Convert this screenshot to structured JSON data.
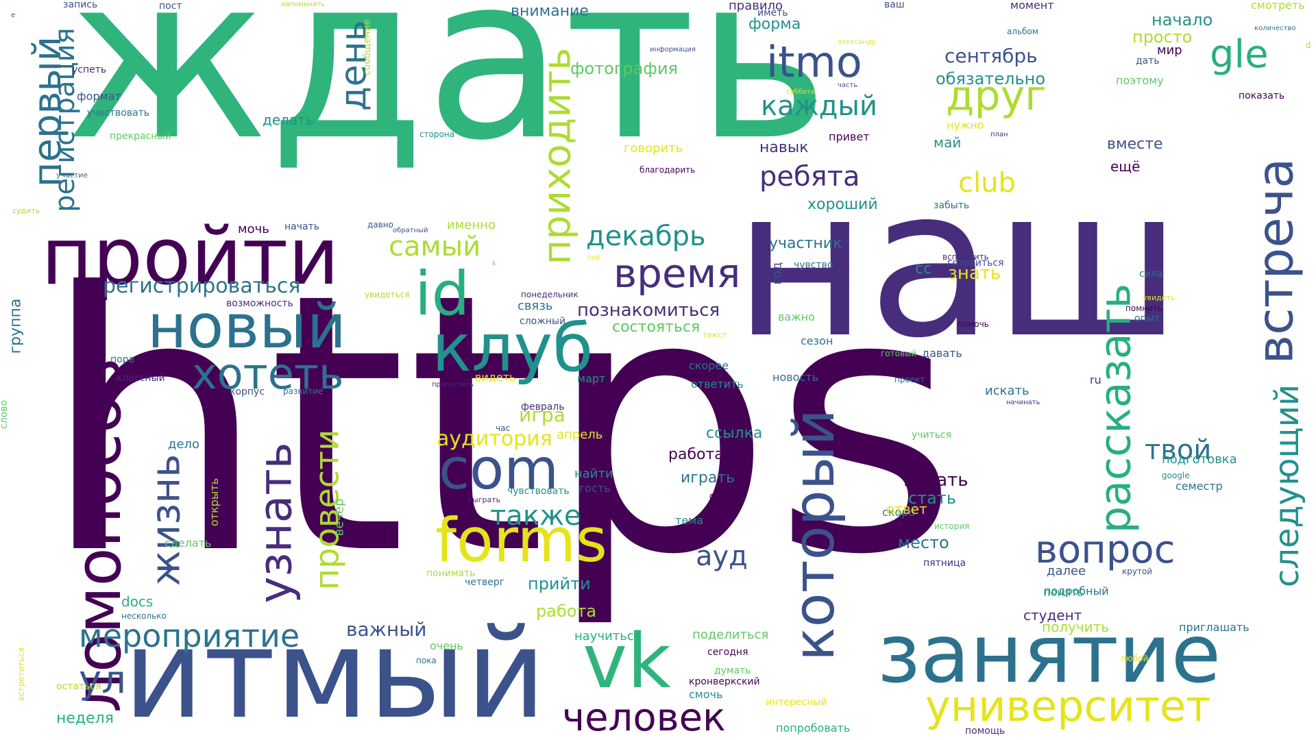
{
  "palette": {
    "green": "#2fb47c",
    "dark_purple": "#440154",
    "indigo": "#472d7b",
    "slate": "#3b528b",
    "teal_blue": "#2c728e",
    "teal": "#21918c",
    "sea_green": "#28ae80",
    "leaf_green": "#5ec962",
    "lime": "#addc30",
    "yellow": "#e5e419"
  },
  "words": [
    "ждать",
    "https",
    "наш",
    "итмый",
    "пройти",
    "новый",
    "занятие",
    "ломоносов",
    "клуб",
    "id",
    "com",
    "forms",
    "vk",
    "который",
    "встреча",
    "рассказать",
    "первый",
    "регистрация",
    "день",
    "приходить",
    "itmo",
    "gle",
    "друг",
    "время",
    "хотеть",
    "узнать",
    "провести",
    "жизнь",
    "мероприятие",
    "ул",
    "человек",
    "университет",
    "вопрос",
    "следующий",
    "твой",
    "ауд",
    "также",
    "декабрь",
    "самый",
    "каждый",
    "ребята",
    "club",
    "сентябрь",
    "обязательно",
    "начало",
    "просто",
    "фотография",
    "внимание",
    "форма",
    "правило",
    "иметь",
    "пост",
    "запись",
    "успеть",
    "формат",
    "участвовать",
    "прекрасный",
    "делать",
    "сторона",
    "участие",
    "судить",
    "сообщение",
    "напоминать",
    "информация",
    "александр",
    "суббота",
    "часть",
    "ваш",
    "альбом",
    "момент",
    "смотреть",
    "количество",
    "мир",
    "дать",
    "поэтому",
    "показать",
    "план",
    "привет",
    "нужно",
    "говорить",
    "благодарить",
    "навык",
    "хороший",
    "вместе",
    "ещё",
    "май",
    "забыть",
    "мочь",
    "начать",
    "давно",
    "обратный",
    "именно",
    "регистрироваться",
    "возможность",
    "увидеться",
    "понедельник",
    "связь",
    "сложный",
    "познакомиться",
    "состояться",
    "участник",
    "год",
    "выезд",
    "чувство",
    "сс",
    "знать",
    "готовиться",
    "вспомнить",
    "помочь",
    "сила",
    "увидеть",
    "помнить",
    "опыт",
    "важно",
    "сезон",
    "текст",
    "скорее",
    "ответить",
    "новость",
    "готовый",
    "давать",
    "проект",
    "искать",
    "начинать",
    "ru",
    "группа",
    "пора",
    "классный",
    "корпус",
    "развитие",
    "пропустить",
    "видеть",
    "март",
    "февраль",
    "игра",
    "аудитория",
    "апрель",
    "час",
    "ссылка",
    "работать",
    "играть",
    "подготовка",
    "google",
    "семестр",
    "писать",
    "стать",
    "учиться",
    "слово",
    "дело",
    "найти",
    "гость",
    "чувствовать",
    "сыграть",
    "завтра",
    "тема",
    "скоро",
    "ответ",
    "история",
    "место",
    "далее",
    "пятница",
    "подробный",
    "крутой",
    "понять",
    "открыть",
    "сделать",
    "вечер",
    "понимать",
    "четверг",
    "прийти",
    "работа",
    "docs",
    "несколько",
    "важный",
    "научиться",
    "очень",
    "студент",
    "получить",
    "приглашать",
    "поделиться",
    "сегодня",
    "пока",
    "любой",
    "кронверкский",
    "думать",
    "смочь",
    "встретиться",
    "остаться",
    "интересный",
    "неделя",
    "попробовать",
    "помощь",
    "s",
    "сей",
    "e",
    "d"
  ]
}
